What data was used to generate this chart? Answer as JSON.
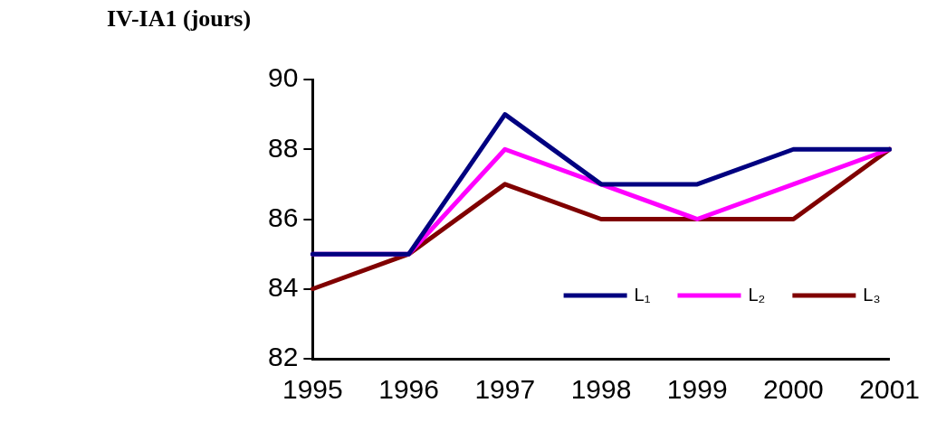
{
  "chart_data": {
    "type": "line",
    "title": "IV-IA1 (jours)",
    "categories": [
      "1995",
      "1996",
      "1997",
      "1998",
      "1999",
      "2000",
      "2001"
    ],
    "series": [
      {
        "name": "L₁",
        "color": "#000080",
        "values": [
          85,
          85,
          89,
          87,
          87,
          88,
          88
        ]
      },
      {
        "name": "L₂",
        "color": "#ff00ff",
        "values": [
          85,
          85,
          88,
          87,
          86,
          87,
          88
        ]
      },
      {
        "name": "L₃",
        "color": "#800000",
        "values": [
          84,
          85,
          87,
          86,
          86,
          86,
          88
        ]
      }
    ],
    "ylim": [
      82,
      90
    ],
    "yticks": [
      82,
      84,
      86,
      88,
      90
    ],
    "grid": false,
    "legend": "bottom right",
    "marker": "none",
    "line_style": "solid"
  }
}
